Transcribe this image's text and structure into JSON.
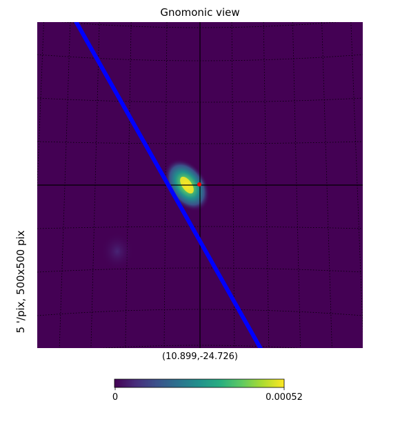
{
  "chart_data": {
    "type": "heatmap",
    "title": "Gnomonic view",
    "projection": "gnomonic",
    "ylabel": "5 '/pix,   500x500 pix",
    "center_label": "(10.899,-24.726)",
    "colormap": "viridis",
    "colorbar": {
      "min": 0,
      "max": 0.00052,
      "min_label": "0",
      "max_label": "0.00052"
    },
    "graticule": "dotted",
    "crosshair": true,
    "overlay_line_color": "#0000ff",
    "center_marker_color": "#ff0000",
    "background_color": "#440154"
  }
}
